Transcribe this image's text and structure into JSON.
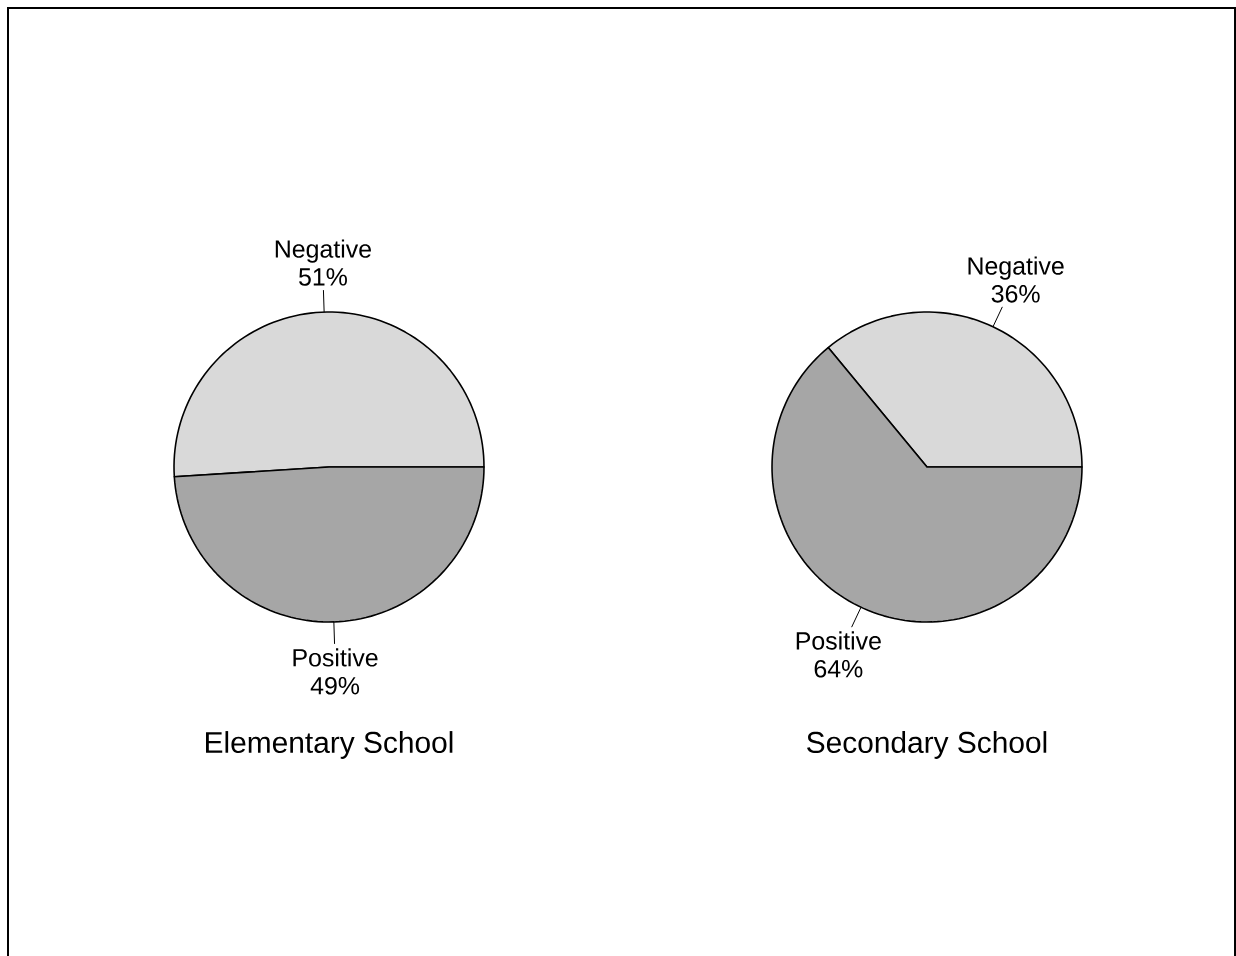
{
  "chart_data": [
    {
      "type": "pie",
      "title": "Elementary School",
      "categories": [
        "Negative",
        "Positive"
      ],
      "values": [
        51,
        49
      ],
      "colors": [
        "#d9d9d9",
        "#a6a6a6"
      ],
      "value_labels": [
        "51%",
        "49%"
      ]
    },
    {
      "type": "pie",
      "title": "Secondary School",
      "categories": [
        "Negative",
        "Positive"
      ],
      "values": [
        36,
        64
      ],
      "colors": [
        "#d9d9d9",
        "#a6a6a6"
      ],
      "value_labels": [
        "36%",
        "64%"
      ]
    }
  ]
}
